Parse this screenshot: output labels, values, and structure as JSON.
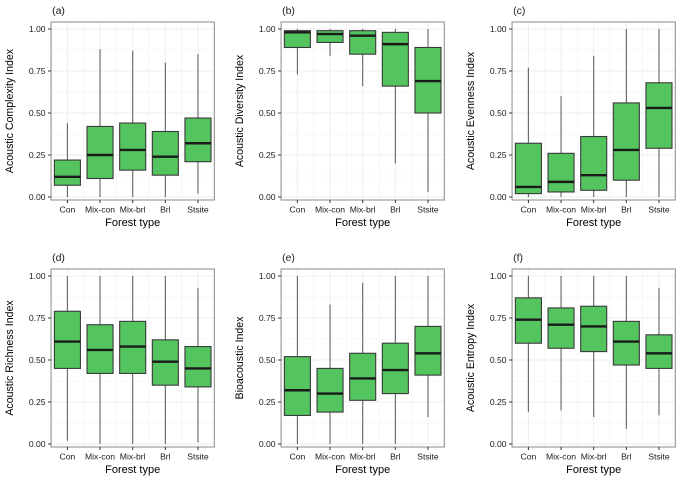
{
  "chart_data": {
    "type": "boxplot",
    "layout": "2x3-grid",
    "xlabel": "Forest type",
    "categories": [
      "Con",
      "Mix-con",
      "Mix-brl",
      "Brl",
      "Stsite"
    ],
    "ytick_labels": [
      "0.00",
      "0.25",
      "0.50",
      "0.75",
      "1.00"
    ],
    "ytick_values": [
      0,
      0.25,
      0.5,
      0.75,
      1
    ],
    "ytick_minor_values": [
      0.125,
      0.375,
      0.625,
      0.875
    ],
    "ylim": [
      0,
      1
    ],
    "grid": "major-and-minor",
    "legend": "none",
    "colors": {
      "box_fill": "#54c45f",
      "box_stroke": "#3a3a3a",
      "median": "#1a1a1a",
      "whisker": "#636363",
      "panel_border": "#8a8a8a",
      "grid_major": "#efecec",
      "grid_minor": "#f6f4f4",
      "tick": "#333333",
      "text": "#1a1a1a",
      "background": "#ffffff"
    },
    "panels": [
      {
        "tag": "(a)",
        "ylabel": "Acoustic Complexity Index",
        "boxes": [
          {
            "category": "Con",
            "low": 0.0,
            "q1": 0.07,
            "median": 0.12,
            "q3": 0.22,
            "high": 0.44
          },
          {
            "category": "Mix-con",
            "low": 0.0,
            "q1": 0.11,
            "median": 0.25,
            "q3": 0.42,
            "high": 0.88
          },
          {
            "category": "Mix-brl",
            "low": 0.0,
            "q1": 0.16,
            "median": 0.28,
            "q3": 0.44,
            "high": 0.87
          },
          {
            "category": "Brl",
            "low": 0.0,
            "q1": 0.13,
            "median": 0.24,
            "q3": 0.39,
            "high": 0.8
          },
          {
            "category": "Stsite",
            "low": 0.02,
            "q1": 0.21,
            "median": 0.32,
            "q3": 0.47,
            "high": 0.85
          }
        ]
      },
      {
        "tag": "(b)",
        "ylabel": "Acoustic Diversity Index",
        "boxes": [
          {
            "category": "Con",
            "low": 0.73,
            "q1": 0.89,
            "median": 0.98,
            "q3": 0.99,
            "high": 1.0
          },
          {
            "category": "Mix-con",
            "low": 0.84,
            "q1": 0.92,
            "median": 0.97,
            "q3": 0.99,
            "high": 1.0
          },
          {
            "category": "Mix-brl",
            "low": 0.66,
            "q1": 0.85,
            "median": 0.96,
            "q3": 0.99,
            "high": 1.0
          },
          {
            "category": "Brl",
            "low": 0.2,
            "q1": 0.66,
            "median": 0.91,
            "q3": 0.98,
            "high": 1.0
          },
          {
            "category": "Stsite",
            "low": 0.03,
            "q1": 0.5,
            "median": 0.69,
            "q3": 0.89,
            "high": 1.0
          }
        ]
      },
      {
        "tag": "(c)",
        "ylabel": "Acoustic Evenness Index",
        "boxes": [
          {
            "category": "Con",
            "low": 0.0,
            "q1": 0.02,
            "median": 0.06,
            "q3": 0.32,
            "high": 0.77
          },
          {
            "category": "Mix-con",
            "low": 0.0,
            "q1": 0.03,
            "median": 0.09,
            "q3": 0.26,
            "high": 0.6
          },
          {
            "category": "Mix-brl",
            "low": 0.0,
            "q1": 0.04,
            "median": 0.13,
            "q3": 0.36,
            "high": 0.84
          },
          {
            "category": "Brl",
            "low": 0.0,
            "q1": 0.1,
            "median": 0.28,
            "q3": 0.56,
            "high": 1.0
          },
          {
            "category": "Stsite",
            "low": 0.0,
            "q1": 0.29,
            "median": 0.53,
            "q3": 0.68,
            "high": 1.0
          }
        ]
      },
      {
        "tag": "(d)",
        "ylabel": "Acoustic Richness Index",
        "boxes": [
          {
            "category": "Con",
            "low": 0.02,
            "q1": 0.45,
            "median": 0.61,
            "q3": 0.79,
            "high": 1.0
          },
          {
            "category": "Mix-con",
            "low": 0.0,
            "q1": 0.42,
            "median": 0.56,
            "q3": 0.71,
            "high": 1.0
          },
          {
            "category": "Mix-brl",
            "low": 0.0,
            "q1": 0.42,
            "median": 0.58,
            "q3": 0.73,
            "high": 1.0
          },
          {
            "category": "Brl",
            "low": 0.0,
            "q1": 0.35,
            "median": 0.49,
            "q3": 0.62,
            "high": 1.0
          },
          {
            "category": "Stsite",
            "low": 0.01,
            "q1": 0.34,
            "median": 0.45,
            "q3": 0.58,
            "high": 0.93
          }
        ]
      },
      {
        "tag": "(e)",
        "ylabel": "Bioacoustic Index",
        "boxes": [
          {
            "category": "Con",
            "low": 0.0,
            "q1": 0.17,
            "median": 0.32,
            "q3": 0.52,
            "high": 1.0
          },
          {
            "category": "Mix-con",
            "low": 0.0,
            "q1": 0.19,
            "median": 0.3,
            "q3": 0.45,
            "high": 0.83
          },
          {
            "category": "Mix-brl",
            "low": 0.0,
            "q1": 0.26,
            "median": 0.39,
            "q3": 0.54,
            "high": 0.96
          },
          {
            "category": "Brl",
            "low": 0.0,
            "q1": 0.3,
            "median": 0.44,
            "q3": 0.6,
            "high": 1.0
          },
          {
            "category": "Stsite",
            "low": 0.16,
            "q1": 0.41,
            "median": 0.54,
            "q3": 0.7,
            "high": 1.0
          }
        ]
      },
      {
        "tag": "(f)",
        "ylabel": "Acoustic Entropy Index",
        "boxes": [
          {
            "category": "Con",
            "low": 0.19,
            "q1": 0.6,
            "median": 0.74,
            "q3": 0.87,
            "high": 1.0
          },
          {
            "category": "Mix-con",
            "low": 0.2,
            "q1": 0.57,
            "median": 0.71,
            "q3": 0.81,
            "high": 1.0
          },
          {
            "category": "Mix-brl",
            "low": 0.16,
            "q1": 0.55,
            "median": 0.7,
            "q3": 0.82,
            "high": 1.0
          },
          {
            "category": "Brl",
            "low": 0.09,
            "q1": 0.47,
            "median": 0.61,
            "q3": 0.73,
            "high": 1.0
          },
          {
            "category": "Stsite",
            "low": 0.17,
            "q1": 0.45,
            "median": 0.54,
            "q3": 0.65,
            "high": 0.93
          }
        ]
      }
    ]
  }
}
